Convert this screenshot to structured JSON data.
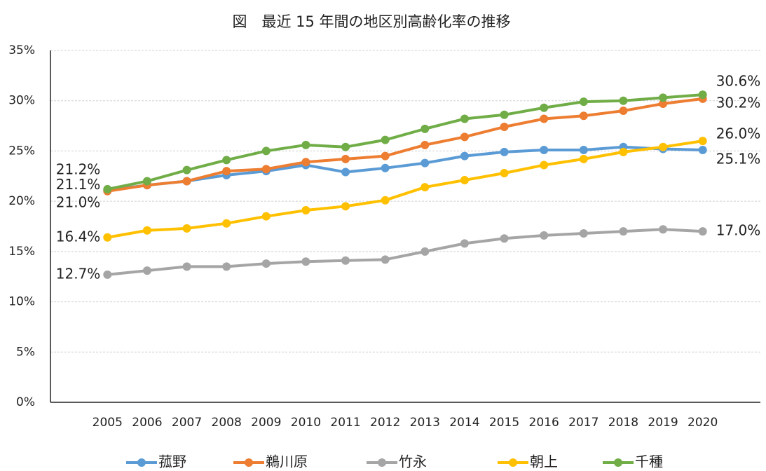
{
  "chart_data": {
    "type": "line",
    "title": "図　最近 15 年間の地区別高齢化率の推移",
    "categories": [
      "2005",
      "2006",
      "2007",
      "2008",
      "2009",
      "2010",
      "2011",
      "2012",
      "2013",
      "2014",
      "2015",
      "2016",
      "2017",
      "2018",
      "2019",
      "2020"
    ],
    "ylim": [
      0,
      35
    ],
    "yticks": [
      {
        "value": 0,
        "label": "0%"
      },
      {
        "value": 5,
        "label": "5%"
      },
      {
        "value": 10,
        "label": "10%"
      },
      {
        "value": 15,
        "label": "15%"
      },
      {
        "value": 20,
        "label": "20%"
      },
      {
        "value": 25,
        "label": "25%"
      },
      {
        "value": 30,
        "label": "30%"
      },
      {
        "value": 35,
        "label": "35%"
      }
    ],
    "grid": true,
    "legend": "bottom",
    "series": [
      {
        "name": "菰野",
        "color": "#5b9bd5",
        "values": [
          21.1,
          21.6,
          22.0,
          22.6,
          23.0,
          23.6,
          22.9,
          23.3,
          23.8,
          24.5,
          24.9,
          25.1,
          25.1,
          25.4,
          25.2,
          25.1
        ],
        "value_labels": [
          "21.1%",
          null,
          null,
          null,
          null,
          null,
          null,
          null,
          null,
          null,
          null,
          null,
          null,
          null,
          null,
          "25.1%"
        ]
      },
      {
        "name": "鵜川原",
        "color": "#ed7d31",
        "values": [
          21.0,
          21.6,
          22.0,
          23.0,
          23.2,
          23.9,
          24.2,
          24.5,
          25.6,
          26.4,
          27.4,
          28.2,
          28.5,
          29.0,
          29.7,
          30.2
        ],
        "value_labels": [
          "21.0%",
          null,
          null,
          null,
          null,
          null,
          null,
          null,
          null,
          null,
          null,
          null,
          null,
          null,
          null,
          "30.2%"
        ]
      },
      {
        "name": "竹永",
        "color": "#a5a5a5",
        "values": [
          12.7,
          13.1,
          13.5,
          13.5,
          13.8,
          14.0,
          14.1,
          14.2,
          15.0,
          15.8,
          16.3,
          16.6,
          16.8,
          17.0,
          17.2,
          17.0
        ],
        "value_labels": [
          "12.7%",
          null,
          null,
          null,
          null,
          null,
          null,
          null,
          null,
          null,
          null,
          null,
          null,
          null,
          null,
          "17.0%"
        ]
      },
      {
        "name": "朝上",
        "color": "#ffc000",
        "values": [
          16.4,
          17.1,
          17.3,
          17.8,
          18.5,
          19.1,
          19.5,
          20.1,
          21.4,
          22.1,
          22.8,
          23.6,
          24.2,
          24.9,
          25.4,
          26.0
        ],
        "value_labels": [
          "16.4%",
          null,
          null,
          null,
          null,
          null,
          null,
          null,
          null,
          null,
          null,
          null,
          null,
          null,
          null,
          "26.0%"
        ]
      },
      {
        "name": "千種",
        "color": "#70ad47",
        "values": [
          21.2,
          22.0,
          23.1,
          24.1,
          25.0,
          25.6,
          25.4,
          26.1,
          27.2,
          28.2,
          28.6,
          29.3,
          29.9,
          30.0,
          30.3,
          30.6
        ],
        "value_labels": [
          "21.2%",
          null,
          null,
          null,
          null,
          null,
          null,
          null,
          null,
          null,
          null,
          null,
          null,
          null,
          null,
          "30.6%"
        ]
      }
    ]
  }
}
